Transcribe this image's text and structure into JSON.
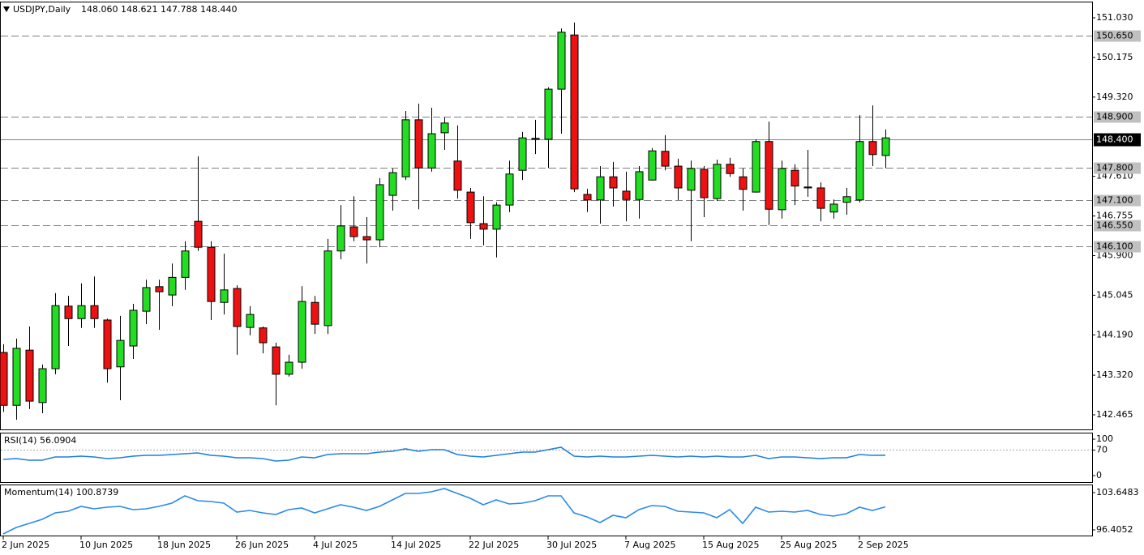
{
  "chart_data": [
    {
      "type": "candlestick",
      "title": "USDJPY,Daily",
      "ohlc_label": "148.060 148.621 147.788 148.440",
      "categories": [
        "2 Jun 2025",
        null,
        null,
        null,
        null,
        null,
        "10 Jun 2025",
        null,
        null,
        null,
        null,
        null,
        "18 Jun 2025",
        null,
        null,
        null,
        null,
        null,
        "26 Jun 2025",
        null,
        null,
        null,
        null,
        null,
        "4 Jul 2025",
        null,
        null,
        null,
        null,
        null,
        "14 Jul 2025",
        null,
        null,
        null,
        null,
        null,
        "22 Jul 2025",
        null,
        null,
        null,
        null,
        null,
        "30 Jul 2025",
        null,
        null,
        null,
        null,
        null,
        "7 Aug 2025",
        null,
        null,
        null,
        null,
        null,
        "15 Aug 2025",
        null,
        null,
        null,
        null,
        null,
        "25 Aug 2025",
        null,
        null,
        null,
        null,
        null,
        "2 Sep 2025",
        null,
        null
      ],
      "open": [
        143.81,
        142.67,
        143.86,
        142.73,
        143.46,
        144.81,
        144.54,
        144.82,
        144.51,
        143.5,
        143.95,
        144.7,
        145.23,
        145.05,
        145.43,
        146.64,
        146.08,
        144.89,
        145.19,
        144.35,
        144.34,
        143.93,
        143.34,
        143.6,
        144.89,
        144.39,
        146.0,
        146.52,
        146.31,
        146.24,
        147.2,
        147.6,
        148.83,
        147.79,
        148.55,
        147.94,
        147.27,
        146.59,
        146.47,
        146.99,
        147.74,
        148.41,
        148.41,
        149.49,
        150.66,
        147.22,
        147.1,
        147.6,
        147.29,
        147.11,
        147.53,
        148.15,
        147.83,
        147.31,
        147.76,
        147.13,
        147.87,
        147.6,
        147.27,
        148.36,
        146.89,
        147.74,
        147.38,
        147.36,
        146.84,
        147.05,
        147.1,
        148.36,
        148.06
      ],
      "high": [
        143.99,
        144.11,
        144.37,
        143.55,
        145.09,
        145.03,
        145.3,
        145.45,
        144.54,
        144.6,
        144.86,
        145.38,
        145.38,
        145.73,
        146.21,
        148.04,
        146.21,
        145.94,
        145.26,
        144.81,
        144.37,
        144.02,
        143.76,
        145.24,
        145.03,
        146.26,
        146.99,
        147.18,
        146.73,
        147.57,
        147.78,
        149.02,
        149.18,
        149.09,
        148.88,
        148.71,
        147.36,
        147.18,
        147.05,
        147.95,
        148.57,
        148.83,
        149.53,
        150.8,
        150.93,
        147.34,
        147.83,
        147.92,
        147.71,
        147.83,
        148.22,
        148.5,
        147.99,
        147.95,
        147.83,
        147.97,
        148.01,
        147.78,
        148.41,
        148.79,
        147.95,
        147.87,
        148.18,
        147.48,
        147.11,
        147.36,
        148.93,
        149.14,
        148.621
      ],
      "low": [
        142.53,
        142.36,
        142.59,
        142.5,
        143.34,
        143.95,
        144.34,
        144.34,
        143.16,
        142.78,
        143.67,
        144.42,
        144.3,
        144.81,
        145.16,
        146.0,
        144.51,
        144.63,
        143.76,
        144.18,
        143.79,
        142.67,
        143.29,
        143.46,
        144.21,
        144.21,
        145.82,
        146.21,
        145.73,
        146.08,
        146.87,
        147.53,
        146.9,
        147.71,
        148.18,
        147.13,
        146.26,
        146.12,
        145.86,
        146.84,
        147.53,
        148.09,
        147.79,
        148.53,
        147.27,
        146.84,
        146.59,
        146.96,
        146.64,
        146.7,
        147.52,
        147.74,
        147.1,
        146.21,
        146.73,
        147.08,
        147.6,
        146.87,
        147.26,
        146.56,
        146.7,
        146.99,
        147.17,
        146.64,
        146.7,
        146.78,
        147.05,
        147.83,
        147.788
      ],
      "close": [
        142.67,
        143.9,
        142.76,
        143.46,
        144.82,
        144.54,
        144.82,
        144.54,
        143.46,
        144.07,
        144.72,
        145.21,
        145.12,
        145.43,
        146.0,
        146.08,
        144.91,
        145.16,
        144.37,
        144.63,
        144.02,
        143.34,
        143.6,
        144.91,
        144.42,
        146.0,
        146.54,
        146.31,
        146.24,
        147.43,
        147.69,
        148.83,
        147.79,
        148.53,
        148.76,
        147.31,
        146.61,
        146.47,
        146.99,
        147.66,
        148.44,
        148.43,
        149.49,
        150.72,
        147.34,
        147.1,
        147.6,
        147.36,
        147.11,
        147.71,
        148.16,
        147.83,
        147.36,
        147.78,
        147.15,
        147.87,
        147.67,
        147.33,
        148.36,
        146.9,
        147.78,
        147.4,
        147.36,
        146.92,
        147.01,
        147.17,
        148.36,
        148.08,
        148.44
      ],
      "up_color": "#22dd22",
      "down_color": "#ee1111",
      "ylim": [
        142.15,
        151.362
      ],
      "yticks": [
        {
          "value": 151.03,
          "label": "151.030"
        },
        150.175,
        {
          "value": 149.32,
          "label": "149.320"
        },
        {
          "value": 147.61,
          "label": "147.610"
        },
        146.755,
        {
          "value": 145.9,
          "label": "145.900"
        },
        145.045,
        {
          "value": 144.19,
          "label": "144.190"
        },
        {
          "value": 143.32,
          "label": "143.320"
        },
        142.465
      ],
      "levels": [
        {
          "value": 150.65,
          "label": "150.650"
        },
        {
          "value": 148.9,
          "label": "148.900"
        },
        {
          "value": 147.8,
          "label": "147.800"
        },
        {
          "value": 147.1,
          "label": "147.100"
        },
        {
          "value": 146.55,
          "label": "146.550"
        },
        {
          "value": 146.1,
          "label": "146.100"
        }
      ],
      "price_line": {
        "value": 148.4,
        "label": "148.400"
      }
    },
    {
      "type": "line",
      "title": "RSI(14) 56.0904",
      "color": "#1e7fe0",
      "values": [
        44.4,
        46.7,
        42.2,
        42.2,
        51.1,
        51.1,
        53.3,
        51.1,
        46.7,
        48.9,
        53.3,
        55.6,
        55.6,
        57.8,
        60.0,
        62.2,
        55.6,
        53.3,
        48.9,
        48.9,
        46.7,
        40.0,
        42.2,
        51.1,
        48.9,
        57.8,
        60.0,
        60.0,
        60.0,
        64.4,
        66.7,
        73.3,
        66.7,
        71.1,
        71.1,
        57.8,
        53.3,
        51.1,
        55.6,
        60.0,
        64.4,
        64.4,
        71.1,
        77.8,
        53.3,
        51.1,
        53.3,
        51.1,
        51.1,
        53.3,
        55.6,
        53.3,
        51.1,
        53.3,
        51.1,
        53.3,
        51.1,
        51.1,
        55.6,
        46.7,
        51.1,
        51.1,
        48.9,
        46.7,
        48.9,
        48.9,
        57.8,
        55.6,
        56.09
      ],
      "ylim": [
        -17.8,
        115.6
      ],
      "yticks": [
        0,
        70,
        100
      ],
      "levels": [
        70
      ]
    },
    {
      "type": "line",
      "title": "Momentum(14) 100.8739",
      "color": "#2a8ae8",
      "values": [
        95.62,
        96.88,
        97.67,
        98.45,
        99.71,
        100.03,
        100.97,
        100.5,
        100.81,
        100.97,
        100.34,
        100.5,
        100.97,
        101.6,
        103.02,
        102.07,
        101.92,
        101.6,
        99.87,
        100.18,
        99.71,
        99.4,
        100.34,
        100.66,
        99.71,
        100.5,
        101.29,
        100.81,
        100.18,
        100.97,
        102.23,
        103.49,
        103.49,
        103.81,
        104.44,
        103.49,
        102.55,
        101.29,
        102.23,
        101.44,
        101.6,
        102.07,
        103.02,
        103.02,
        99.71,
        98.92,
        97.82,
        99.24,
        98.77,
        100.34,
        101.13,
        100.97,
        100.03,
        99.87,
        99.71,
        98.77,
        100.34,
        97.67,
        100.81,
        99.87,
        100.03,
        99.87,
        100.18,
        99.4,
        99.08,
        99.55,
        100.81,
        100.18,
        100.8739
      ],
      "ylim": [
        95.3,
        105.07
      ],
      "yticks": [
        103.6483,
        96.4052
      ]
    }
  ]
}
